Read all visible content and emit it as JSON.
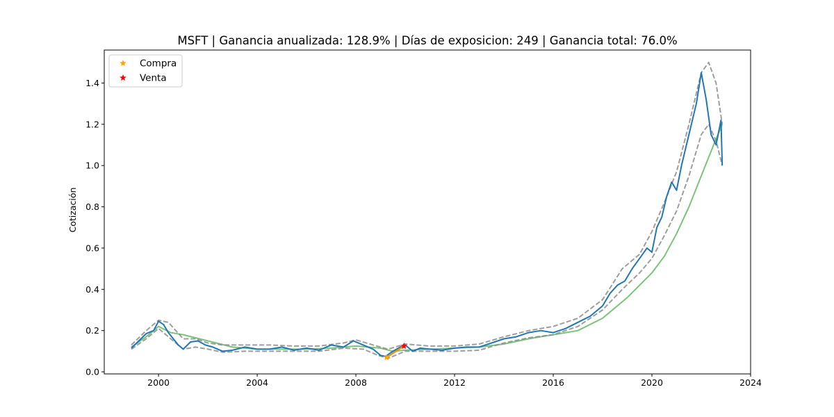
{
  "chart_data": {
    "type": "line",
    "title": "MSFT | Ganancia anualizada: 128.9% | Días de exposicion:    249 | Ganancia total:  76.0%",
    "xlabel": "",
    "ylabel": "Cotización",
    "xlim": [
      1997.8,
      2024.0
    ],
    "ylim": [
      -0.01,
      1.56
    ],
    "x_ticks": [
      2000,
      2004,
      2008,
      2012,
      2016,
      2020,
      2024
    ],
    "y_ticks": [
      0.0,
      0.2,
      0.4,
      0.6,
      0.8,
      1.0,
      1.2,
      1.4
    ],
    "y_tick_labels": [
      "0.0",
      "0.2",
      "0.4",
      "0.6",
      "0.8",
      "1.0",
      "1.2",
      "1.4"
    ],
    "grid": false,
    "legend_position": "upper-left",
    "legend": [
      {
        "label": "Compra",
        "color": "#ffa500",
        "marker": "star"
      },
      {
        "label": "Venta",
        "color": "#ff0000",
        "marker": "star"
      }
    ],
    "series": [
      {
        "role": "price",
        "color": "#1f77b4",
        "style": "solid",
        "x": [
          1998.9,
          1999.2,
          1999.5,
          1999.8,
          2000.0,
          2000.2,
          2000.4,
          2000.6,
          2000.8,
          2001.0,
          2001.3,
          2001.6,
          2001.9,
          2002.2,
          2002.6,
          2003.0,
          2003.5,
          2004.0,
          2004.5,
          2005.0,
          2005.5,
          2006.0,
          2006.5,
          2007.0,
          2007.5,
          2007.9,
          2008.3,
          2008.7,
          2009.0,
          2009.2,
          2009.5,
          2009.8,
          2010.0,
          2010.3,
          2010.6,
          2011.0,
          2011.5,
          2012.0,
          2012.5,
          2013.0,
          2013.5,
          2014.0,
          2014.5,
          2015.0,
          2015.5,
          2016.0,
          2016.5,
          2017.0,
          2017.5,
          2018.0,
          2018.3,
          2018.6,
          2018.9,
          2019.2,
          2019.5,
          2019.8,
          2020.0,
          2020.2,
          2020.4,
          2020.6,
          2020.8,
          2021.0,
          2021.2,
          2021.4,
          2021.6,
          2021.8,
          2022.0,
          2022.2,
          2022.4,
          2022.6,
          2022.8,
          2022.85
        ],
        "y": [
          0.115,
          0.15,
          0.185,
          0.2,
          0.245,
          0.23,
          0.19,
          0.16,
          0.13,
          0.11,
          0.145,
          0.15,
          0.13,
          0.12,
          0.1,
          0.105,
          0.12,
          0.11,
          0.11,
          0.12,
          0.105,
          0.115,
          0.105,
          0.13,
          0.12,
          0.15,
          0.13,
          0.11,
          0.08,
          0.075,
          0.1,
          0.12,
          0.13,
          0.1,
          0.115,
          0.11,
          0.105,
          0.115,
          0.12,
          0.12,
          0.14,
          0.16,
          0.17,
          0.19,
          0.2,
          0.19,
          0.21,
          0.24,
          0.27,
          0.32,
          0.38,
          0.42,
          0.44,
          0.5,
          0.55,
          0.6,
          0.58,
          0.7,
          0.75,
          0.85,
          0.92,
          0.88,
          1.0,
          1.1,
          1.2,
          1.3,
          1.45,
          1.32,
          1.15,
          1.1,
          1.22,
          1.0
        ]
      },
      {
        "role": "upper-band",
        "color": "#8c8c8c",
        "style": "dashed",
        "x": [
          1998.9,
          1999.5,
          2000.0,
          2000.4,
          2001.0,
          2001.5,
          2002.0,
          2002.6,
          2003.5,
          2004.5,
          2005.5,
          2006.5,
          2007.5,
          2008.0,
          2008.7,
          2009.3,
          2010.0,
          2011.0,
          2012.0,
          2013.0,
          2014.0,
          2015.0,
          2016.0,
          2017.0,
          2018.0,
          2018.8,
          2019.5,
          2020.0,
          2020.5,
          2021.0,
          2021.5,
          2022.0,
          2022.3,
          2022.6,
          2022.85
        ],
        "y": [
          0.13,
          0.2,
          0.25,
          0.24,
          0.16,
          0.16,
          0.14,
          0.13,
          0.13,
          0.13,
          0.125,
          0.125,
          0.14,
          0.155,
          0.13,
          0.11,
          0.135,
          0.125,
          0.125,
          0.135,
          0.17,
          0.2,
          0.22,
          0.26,
          0.35,
          0.5,
          0.57,
          0.68,
          0.82,
          0.97,
          1.2,
          1.45,
          1.5,
          1.4,
          1.2
        ]
      },
      {
        "role": "lower-band",
        "color": "#8c8c8c",
        "style": "dashed",
        "x": [
          1998.9,
          1999.5,
          2000.0,
          2000.4,
          2001.0,
          2001.5,
          2002.0,
          2002.6,
          2003.5,
          2004.5,
          2005.5,
          2006.5,
          2007.5,
          2008.3,
          2008.9,
          2009.3,
          2010.0,
          2011.0,
          2012.0,
          2013.0,
          2014.0,
          2015.0,
          2016.0,
          2017.0,
          2018.0,
          2018.8,
          2019.5,
          2020.0,
          2020.5,
          2021.0,
          2021.5,
          2022.0,
          2022.3,
          2022.6,
          2022.85
        ],
        "y": [
          0.11,
          0.16,
          0.21,
          0.17,
          0.11,
          0.12,
          0.11,
          0.095,
          0.1,
          0.1,
          0.1,
          0.1,
          0.115,
          0.11,
          0.08,
          0.065,
          0.1,
          0.1,
          0.1,
          0.105,
          0.14,
          0.165,
          0.18,
          0.22,
          0.3,
          0.4,
          0.48,
          0.55,
          0.66,
          0.78,
          0.95,
          1.15,
          1.2,
          1.12,
          1.0
        ]
      },
      {
        "role": "long-average",
        "color": "#4daf4a",
        "style": "solid",
        "x": [
          1998.9,
          1999.5,
          2000.0,
          2000.5,
          2001.0,
          2002.0,
          2003.0,
          2004.0,
          2005.0,
          2006.0,
          2007.0,
          2008.0,
          2009.0,
          2009.5,
          2010.0,
          2011.0,
          2012.0,
          2013.0,
          2014.0,
          2015.0,
          2016.0,
          2017.0,
          2018.0,
          2019.0,
          2020.0,
          2020.5,
          2021.0,
          2021.5,
          2022.0,
          2022.5,
          2022.85
        ],
        "y": [
          0.12,
          0.17,
          0.22,
          0.19,
          0.18,
          0.15,
          0.12,
          0.11,
          0.11,
          0.11,
          0.115,
          0.125,
          0.115,
          0.1,
          0.105,
          0.11,
          0.115,
          0.12,
          0.135,
          0.16,
          0.18,
          0.2,
          0.26,
          0.36,
          0.48,
          0.56,
          0.67,
          0.8,
          0.95,
          1.1,
          1.2
        ]
      }
    ],
    "markers": {
      "buy": [
        {
          "x": 2009.25,
          "y": 0.07
        }
      ],
      "sell": [
        {
          "x": 2009.95,
          "y": 0.125
        }
      ]
    },
    "holding_segment": {
      "color": "#ff8c00",
      "x": [
        2009.25,
        2009.5,
        2009.75,
        2009.95
      ],
      "y": [
        0.07,
        0.09,
        0.11,
        0.125
      ]
    }
  }
}
